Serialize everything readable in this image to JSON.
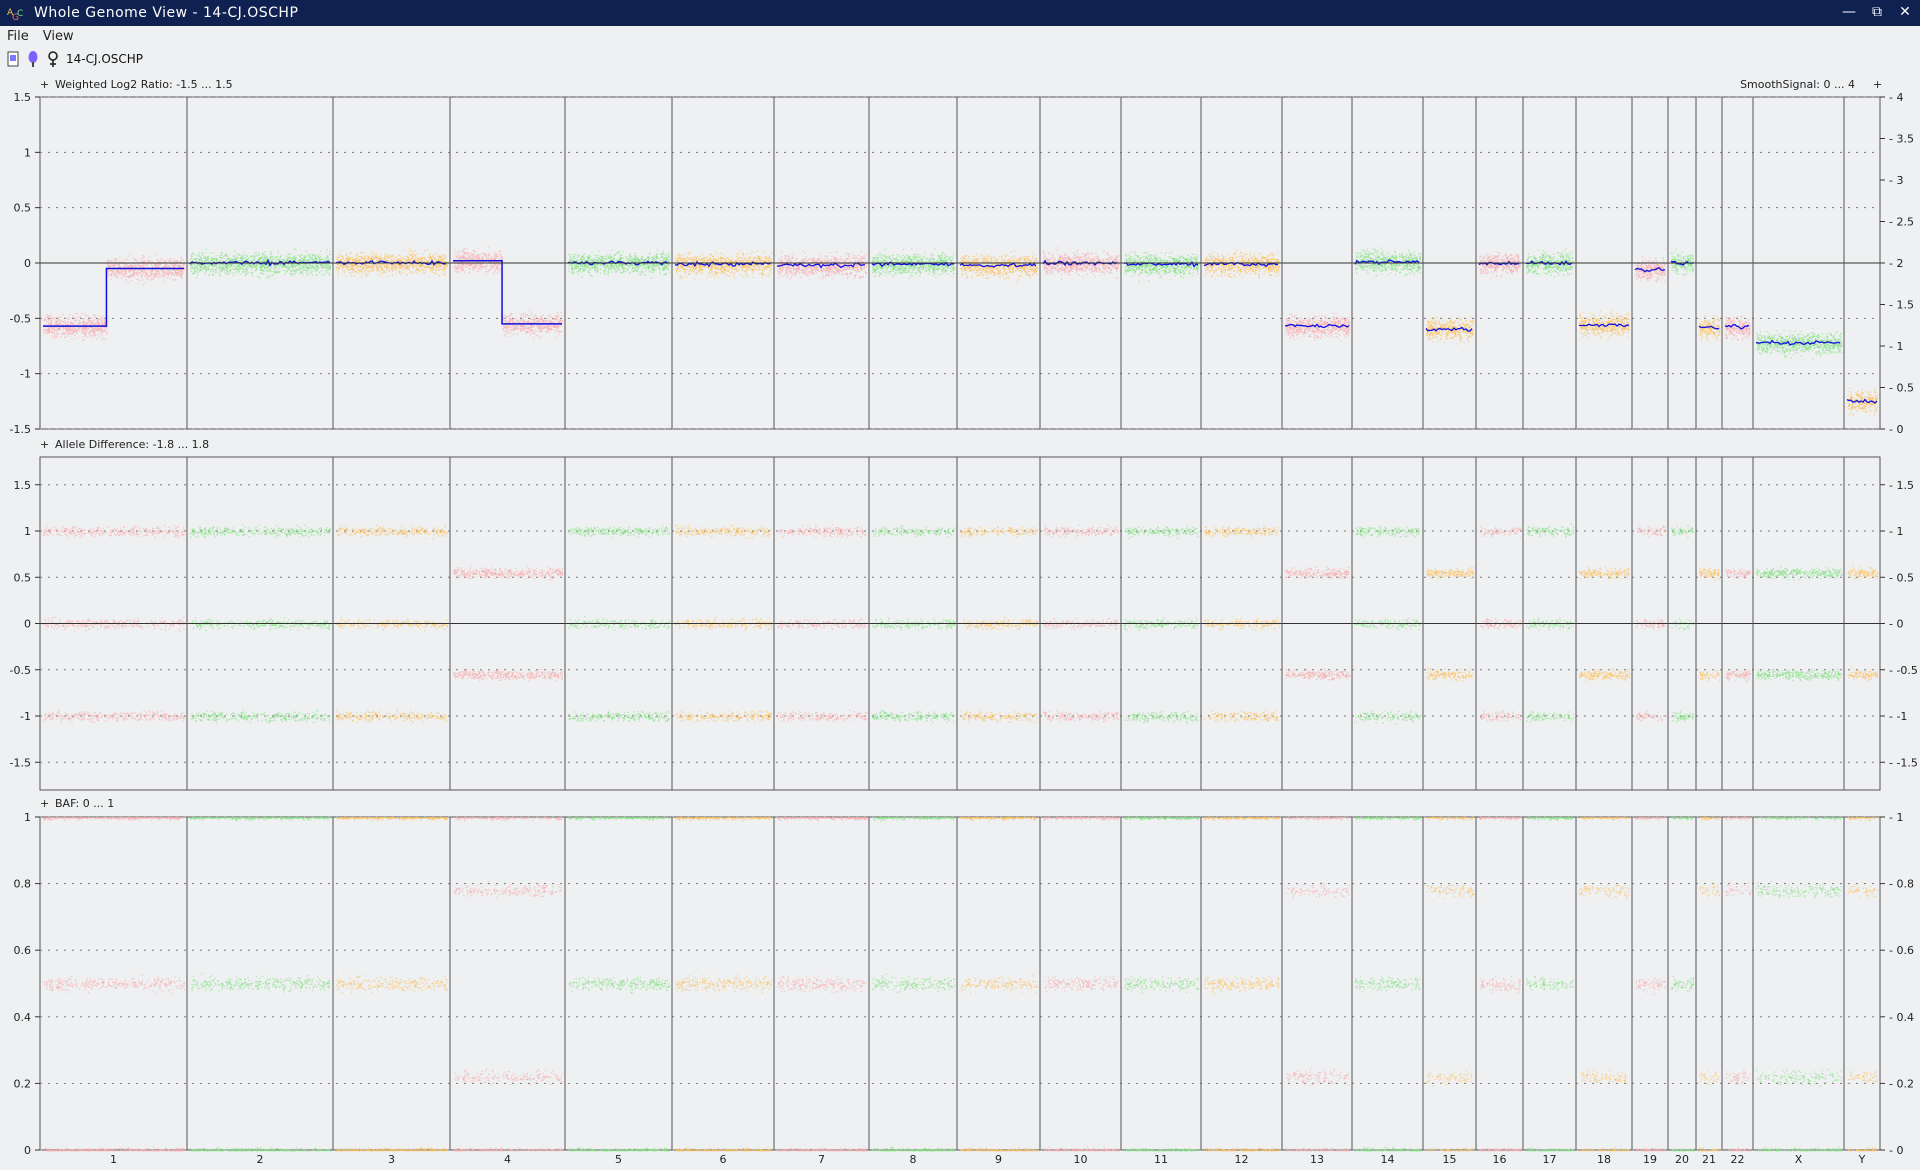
{
  "window": {
    "title": "Whole Genome View - 14-CJ.OSCHP"
  },
  "menu": [
    {
      "label": "File"
    },
    {
      "label": "View"
    }
  ],
  "sample": {
    "name": "14-CJ.OSCHP"
  },
  "colors": {
    "pink": "#f9a8a8",
    "green": "#7de07a",
    "orange": "#fdbd54",
    "segment": "#1010e0",
    "title_bar": "#0e2150"
  },
  "panels": [
    {
      "label": "Weighted Log2 Ratio: -1.5 ... 1.5",
      "right_label": "SmoothSignal: 0 ... 4",
      "left_ticks": [
        "1.5",
        "1",
        "0.5",
        "0",
        "-0.5",
        "-1",
        "-1.5"
      ],
      "right_ticks": [
        "4",
        "3.5",
        "3",
        "2.5",
        "2",
        "1.5",
        "1",
        "0.5",
        "0"
      ]
    },
    {
      "label": "Allele Difference: -1.8 ... 1.8",
      "right_label": "",
      "left_ticks": [
        "1.5",
        "1",
        "0.5",
        "0",
        "-0.5",
        "-1",
        "-1.5"
      ],
      "right_ticks": [
        "1.5",
        "1",
        "0.5",
        "0",
        "-0.5",
        "-1",
        "-1.5"
      ]
    },
    {
      "label": "BAF: 0 ... 1",
      "right_label": "",
      "left_ticks": [
        "1",
        "0.8",
        "0.6",
        "0.4",
        "0.2",
        "0"
      ],
      "right_ticks": [
        "1",
        "0.8",
        "0.6",
        "0.4",
        "0.2",
        "0"
      ]
    }
  ],
  "chromosomes": [
    {
      "name": "1",
      "color": "pink",
      "log2": [
        -0.57,
        -0.05
      ],
      "copy": "mixed"
    },
    {
      "name": "2",
      "color": "green",
      "log2": 0.0
    },
    {
      "name": "3",
      "color": "orange",
      "log2": 0.0
    },
    {
      "name": "4",
      "color": "pink",
      "log2": [
        0.02,
        -0.55
      ],
      "copy": "mixed"
    },
    {
      "name": "5",
      "color": "green",
      "log2": 0.0
    },
    {
      "name": "6",
      "color": "orange",
      "log2": -0.01
    },
    {
      "name": "7",
      "color": "pink",
      "log2": -0.02
    },
    {
      "name": "8",
      "color": "green",
      "log2": -0.01
    },
    {
      "name": "9",
      "color": "orange",
      "log2": -0.02
    },
    {
      "name": "10",
      "color": "pink",
      "log2": 0.0
    },
    {
      "name": "11",
      "color": "green",
      "log2": -0.01
    },
    {
      "name": "12",
      "color": "orange",
      "log2": -0.01
    },
    {
      "name": "13",
      "color": "pink",
      "log2": -0.57
    },
    {
      "name": "14",
      "color": "green",
      "log2": 0.01
    },
    {
      "name": "15",
      "color": "orange",
      "log2": -0.6
    },
    {
      "name": "16",
      "color": "pink",
      "log2": 0.0
    },
    {
      "name": "17",
      "color": "green",
      "log2": 0.0
    },
    {
      "name": "18",
      "color": "orange",
      "log2": -0.56
    },
    {
      "name": "19",
      "color": "pink",
      "log2": -0.06
    },
    {
      "name": "20",
      "color": "green",
      "log2": 0.0
    },
    {
      "name": "21",
      "color": "orange",
      "log2": -0.58
    },
    {
      "name": "22",
      "color": "pink",
      "log2": -0.58
    },
    {
      "name": "X",
      "color": "green",
      "log2": -0.72
    },
    {
      "name": "Y",
      "color": "orange",
      "log2": -1.25
    }
  ]
}
